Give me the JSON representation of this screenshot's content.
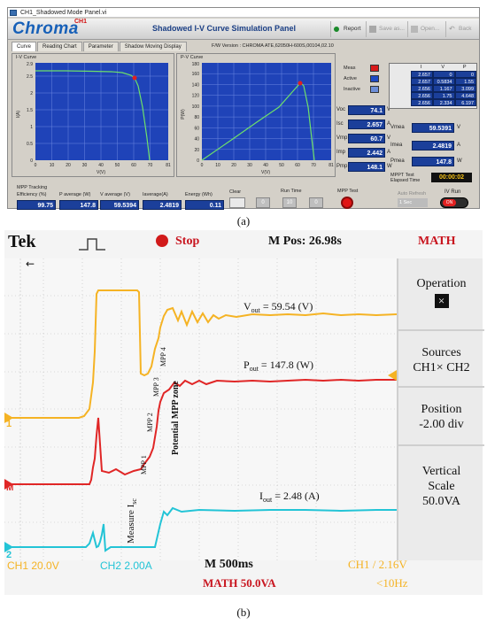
{
  "panel_a": {
    "window_title": "CH1_Shadowed Mode Panel.vi",
    "logo_text": "Chroma",
    "logo_sup": "CH1",
    "app_title": "Shadowed I-V Curve Simulation Panel",
    "toolbar": {
      "report": "Report",
      "save_as": "Save as...",
      "open": "Open...",
      "back": "Back"
    },
    "tabs": [
      "Curve",
      "Reading Chart",
      "Parameter",
      "Shadow Moving Display"
    ],
    "fw_version": "F/W Version : CHROMA ATE,62050H-600S,00104,02.10",
    "iv_chart": {
      "title": "I-V Curve",
      "xlabel": "V(V)",
      "ylabel": "I(A)",
      "x_ticks": [
        "0",
        "10",
        "20",
        "30",
        "40",
        "50",
        "60",
        "70",
        "81"
      ],
      "y_ticks": [
        "0",
        "0.5",
        "1",
        "1.5",
        "2",
        "2.5",
        "2.9"
      ]
    },
    "pv_chart": {
      "title": "P-V Curve",
      "xlabel": "V(V)",
      "ylabel": "P(W)",
      "x_ticks": [
        "0",
        "10",
        "20",
        "30",
        "40",
        "50",
        "60",
        "70",
        "81"
      ],
      "y_ticks": [
        "0",
        "20",
        "40",
        "60",
        "80",
        "100",
        "120",
        "140",
        "160",
        "180"
      ]
    },
    "legend": [
      "Meas",
      "Active",
      "Inactive"
    ],
    "values": {
      "voc": {
        "label": "Voc",
        "value": "74.1",
        "unit": "V"
      },
      "isc": {
        "label": "Isc",
        "value": "2.657",
        "unit": "A"
      },
      "vmp": {
        "label": "Vmp",
        "value": "60.7",
        "unit": "V"
      },
      "imp": {
        "label": "Imp",
        "value": "2.442",
        "unit": "A"
      },
      "pmp": {
        "label": "Pmp",
        "value": "148.1",
        "unit": "W"
      }
    },
    "table": {
      "headers": [
        "I",
        "V",
        "P"
      ],
      "rows": [
        [
          "2.657",
          "0",
          "0"
        ],
        [
          "2.657",
          "0.5834",
          "1.55"
        ],
        [
          "2.656",
          "1.167",
          "3.099"
        ],
        [
          "2.656",
          "1.75",
          "4.648"
        ],
        [
          "2.656",
          "2.334",
          "6.197"
        ]
      ]
    },
    "readings": {
      "vmea": {
        "label": "Vmea",
        "value": "59.5391",
        "unit": "V"
      },
      "imea": {
        "label": "Imea",
        "value": "2.4819",
        "unit": "A"
      },
      "pmea": {
        "label": "Pmea",
        "value": "147.8",
        "unit": "W"
      }
    },
    "elapsed": {
      "label": "MPPT Test Elapsed Time",
      "value": "00:00:02"
    },
    "mpp": {
      "section_label": "MPP Tracking",
      "efficiency": {
        "label": "Efficiency (%)",
        "value": "99.75"
      },
      "p_average": {
        "label": "P average (W)",
        "value": "147.8"
      },
      "v_average": {
        "label": "V average (V)",
        "value": "59.5394"
      },
      "i_average": {
        "label": "Iaverage(A)",
        "value": "2.4819"
      },
      "energy": {
        "label": "Energy (Wh)",
        "value": "0.11"
      }
    },
    "clear_label": "Clear",
    "run_time": {
      "label": "Run Time",
      "h": "0",
      "m": "10",
      "s": "0"
    },
    "mpp_test_label": "MPP Test",
    "auto_refresh": {
      "label": "Auto Refresh",
      "value": "1 Sec"
    },
    "iv_run": {
      "label": "IV Run",
      "state": "ON"
    },
    "caption": "(a)"
  },
  "panel_b": {
    "brand": "Tek",
    "status": "Stop",
    "m_pos": "M Pos: 26.98s",
    "math_title": "MATH",
    "vout_label": "V",
    "vout_sub": "out",
    "vout_value": " = 59.54 (V)",
    "pout_label": "P",
    "pout_sub": "out",
    "pout_value": " = 147.8 (W)",
    "iout_label": "I",
    "iout_sub": "out",
    "iout_value": " = 2.48 (A)",
    "mpp_labels": [
      "MPP 1",
      "MPP 2",
      "MPP 3",
      "MPP 4"
    ],
    "potential_zone": "Potential MPP zone",
    "measure_isc": "Measure I",
    "measure_isc_sub": "sc",
    "menu": {
      "operation": "Operation",
      "operation_value": "×",
      "sources_label": "Sources",
      "sources_value": "CH1× CH2",
      "position_label": "Position",
      "position_value": "-2.00 div",
      "vscale_label": "Vertical",
      "vscale_label2": "Scale",
      "vscale_value": "50.0VA"
    },
    "footer": {
      "ch1": "CH1  20.0V",
      "ch2": "CH2  2.00A",
      "timebase": "M 500ms",
      "math": "MATH 50.0VA",
      "trigger": "CH1 / 2.16V",
      "freq": "<10Hz"
    },
    "colors": {
      "voltage": "#f5b324",
      "power": "#e02626",
      "current": "#23c4d6",
      "math_text": "#c8141e"
    },
    "caption": "(b)"
  }
}
